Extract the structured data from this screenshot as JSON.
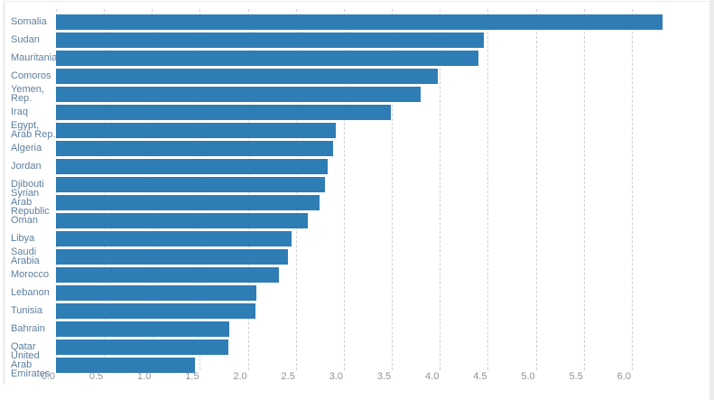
{
  "chart_data": {
    "type": "bar",
    "orientation": "horizontal",
    "title": "",
    "xlabel": "",
    "ylabel": "",
    "categories": [
      "Somalia",
      "Sudan",
      "Mauritania",
      "Comoros",
      "Yemen, Rep.",
      "Iraq",
      "Egypt, Arab Rep.",
      "Algeria",
      "Jordan",
      "Djibouti",
      "Syrian Arab Republic",
      "Oman",
      "Libya",
      "Saudi Arabia",
      "Morocco",
      "Lebanon",
      "Tunisia",
      "Bahrain",
      "Qatar",
      "United Arab Emirates"
    ],
    "values": [
      6.32,
      4.46,
      4.4,
      3.98,
      3.8,
      3.49,
      2.92,
      2.89,
      2.83,
      2.8,
      2.75,
      2.62,
      2.45,
      2.42,
      2.32,
      2.09,
      2.08,
      1.81,
      1.8,
      1.45
    ],
    "xlim": [
      0,
      6.35
    ],
    "x_ticks": [
      0,
      0.5,
      1,
      1.5,
      2,
      2.5,
      3,
      3.5,
      4,
      4.5,
      5,
      5.5,
      6
    ],
    "x_tick_labels": [
      "0.0",
      "0.5",
      "1.0",
      "1.5",
      "2.0",
      "2.5",
      "3.0",
      "3.5",
      "4.0",
      "4.5",
      "5.0",
      "5.5",
      "6.0"
    ],
    "grid": "vertical-dashed",
    "legend": "none",
    "bar_color": "#2e7db5"
  },
  "colors": {
    "bar": "#2e7db5",
    "category_label": "#5e7f9e",
    "tick_label": "#8e9398",
    "gridline": "#ccd0d4",
    "panel_border": "#dadde0",
    "scrollbar_track": "#e9ebed",
    "background": "#ffffff"
  }
}
